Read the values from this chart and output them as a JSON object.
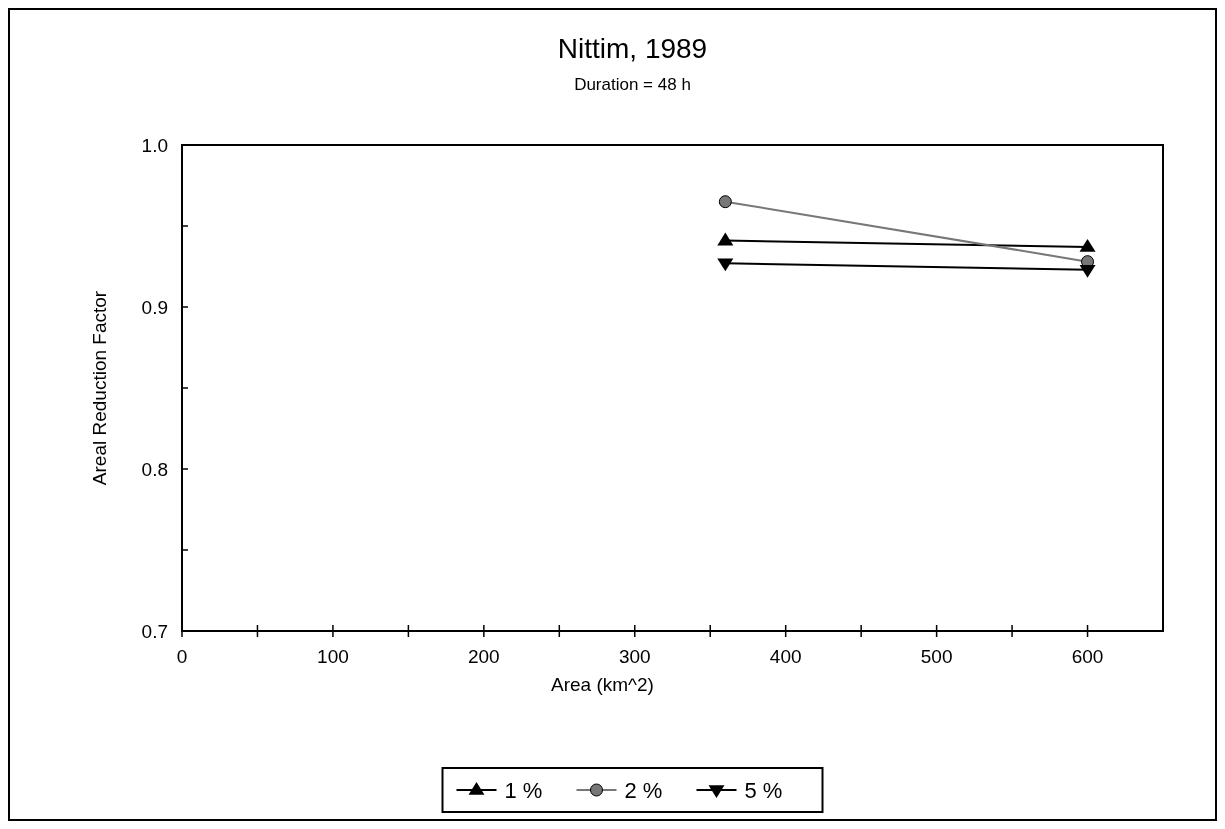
{
  "chart_data": {
    "type": "line",
    "title": "Nittim, 1989",
    "subtitle": "Duration = 48 h",
    "xlabel": "Area (km^2)",
    "ylabel": "Areal Reduction Factor",
    "x": [
      360,
      600
    ],
    "series": [
      {
        "name": "1 %",
        "color": "#000000",
        "marker": "triangle",
        "values": [
          0.941,
          0.937
        ]
      },
      {
        "name": "2 %",
        "color": "#777777",
        "marker": "circle",
        "values": [
          0.965,
          0.928
        ]
      },
      {
        "name": "5 %",
        "color": "#000000",
        "marker": "triangle-down",
        "values": [
          0.927,
          0.923
        ]
      }
    ],
    "xlim": [
      0,
      650
    ],
    "xticks": [
      0,
      {
        "value": 50,
        "label": null
      },
      100,
      {
        "value": 150,
        "label": null
      },
      200,
      {
        "value": 250,
        "label": null
      },
      300,
      {
        "value": 350,
        "label": null
      },
      400,
      {
        "value": 450,
        "label": null
      },
      500,
      {
        "value": 550,
        "label": null
      },
      600
    ],
    "ylim": [
      0.7,
      1.0
    ],
    "yticks": [
      {
        "value": 0.7,
        "label": "0.7"
      },
      {
        "value": 0.75,
        "label": null
      },
      {
        "value": 0.8,
        "label": "0.8"
      },
      {
        "value": 0.85,
        "label": null
      },
      {
        "value": 0.9,
        "label": "0.9"
      },
      {
        "value": 0.95,
        "label": null
      },
      {
        "value": 1.0,
        "label": "1.0"
      }
    ],
    "grid": false,
    "legend": "bottom"
  }
}
